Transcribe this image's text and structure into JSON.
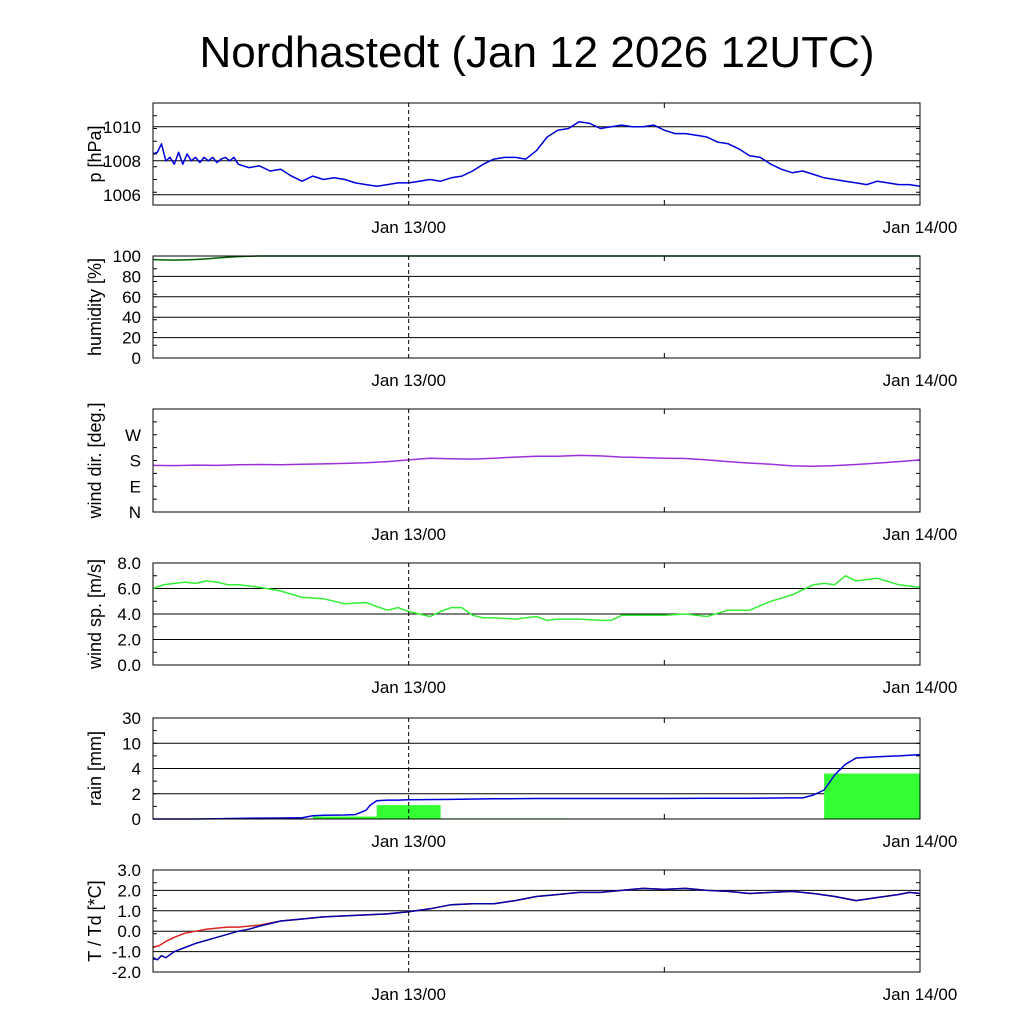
{
  "title": "Nordhastedt (Jan 12 2026 12UTC)",
  "colors": {
    "pressure": "#0000dd",
    "humidity": "#006400",
    "wind_dir": "#9b30d9",
    "wind_speed": "#33ee33",
    "rain_bar": "#33ff33",
    "rain_cum": "#0000dd",
    "temp": "#dd2222",
    "dewpoint": "#0000aa"
  },
  "chart_data": [
    {
      "id": "pressure",
      "type": "line",
      "ylabel": "p [hPa]",
      "x_ticks": [
        "Jan 13/00",
        "Jan 14/00"
      ],
      "x_tick_hours": [
        12,
        36
      ],
      "x_range_hours": [
        0,
        36
      ],
      "y_ticks": [
        "1006",
        "1008",
        "1010"
      ],
      "y_tick_values": [
        1006,
        1008,
        1010
      ],
      "ylim": [
        1005.4,
        1011.4
      ],
      "grid": "horizontal",
      "series": [
        {
          "key": "pressure",
          "x": [
            0,
            0.2,
            0.4,
            0.6,
            0.8,
            1.0,
            1.2,
            1.4,
            1.6,
            1.8,
            2.0,
            2.2,
            2.4,
            2.6,
            2.8,
            3.0,
            3.2,
            3.4,
            3.6,
            3.8,
            4.0,
            4.5,
            5.0,
            5.5,
            6.0,
            6.5,
            7.0,
            7.5,
            8.0,
            8.5,
            9.0,
            9.5,
            10.0,
            10.5,
            11.0,
            11.5,
            12.0,
            12.5,
            13.0,
            13.5,
            14.0,
            14.5,
            15.0,
            15.5,
            16.0,
            16.5,
            17.0,
            17.5,
            18.0,
            18.5,
            19.0,
            19.5,
            20.0,
            20.5,
            21.0,
            21.5,
            22.0,
            22.5,
            23.0,
            23.5,
            24.0,
            24.5,
            25.0,
            25.5,
            26.0,
            26.5,
            27.0,
            27.5,
            28.0,
            28.5,
            29.0,
            29.5,
            30.0,
            30.5,
            31.0,
            31.5,
            32.0,
            32.5,
            33.0,
            33.5,
            34.0,
            34.5,
            35.0,
            35.5,
            36.0
          ],
          "values": [
            1008.4,
            1008.5,
            1009.0,
            1008.0,
            1008.2,
            1007.8,
            1008.5,
            1007.8,
            1008.4,
            1008.0,
            1008.2,
            1007.9,
            1008.2,
            1008.0,
            1008.2,
            1007.9,
            1008.1,
            1008.2,
            1008.0,
            1008.2,
            1007.8,
            1007.6,
            1007.7,
            1007.4,
            1007.5,
            1007.1,
            1006.8,
            1007.1,
            1006.9,
            1007.0,
            1006.9,
            1006.7,
            1006.6,
            1006.5,
            1006.6,
            1006.7,
            1006.7,
            1006.8,
            1006.9,
            1006.8,
            1007.0,
            1007.1,
            1007.4,
            1007.8,
            1008.1,
            1008.2,
            1008.2,
            1008.1,
            1008.6,
            1009.4,
            1009.8,
            1009.9,
            1010.3,
            1010.2,
            1009.9,
            1010.0,
            1010.1,
            1010.0,
            1010.0,
            1010.1,
            1009.8,
            1009.6,
            1009.6,
            1009.5,
            1009.4,
            1009.1,
            1009.0,
            1008.7,
            1008.3,
            1008.2,
            1007.8,
            1007.5,
            1007.3,
            1007.4,
            1007.2,
            1007.0,
            1006.9,
            1006.8,
            1006.7,
            1006.6,
            1006.8,
            1006.7,
            1006.6,
            1006.6,
            1006.5
          ]
        }
      ]
    },
    {
      "id": "humidity",
      "type": "line",
      "ylabel": "humidity [%]",
      "x_ticks": [
        "Jan 13/00",
        "Jan 14/00"
      ],
      "x_tick_hours": [
        12,
        36
      ],
      "x_range_hours": [
        0,
        36
      ],
      "y_ticks": [
        "0",
        "20",
        "40",
        "60",
        "80",
        "100"
      ],
      "y_tick_values": [
        0,
        20,
        40,
        60,
        80,
        100
      ],
      "ylim": [
        0,
        100
      ],
      "grid": "horizontal",
      "series": [
        {
          "key": "humidity",
          "x": [
            0,
            0.5,
            1,
            1.5,
            2,
            2.5,
            3,
            3.5,
            4,
            4.5,
            5,
            36
          ],
          "values": [
            96.5,
            96.2,
            96.0,
            96.2,
            96.6,
            97.2,
            98.0,
            98.8,
            99.4,
            99.8,
            100,
            100
          ]
        }
      ]
    },
    {
      "id": "wind_dir",
      "type": "line",
      "ylabel": "wind dir. [deg.]",
      "x_ticks": [
        "Jan 13/00",
        "Jan 14/00"
      ],
      "x_tick_hours": [
        12,
        36
      ],
      "x_range_hours": [
        0,
        36
      ],
      "y_ticks": [
        "N",
        "E",
        "S",
        "W"
      ],
      "y_tick_values": [
        0,
        90,
        180,
        270
      ],
      "ylim": [
        0,
        360
      ],
      "grid": "none",
      "series": [
        {
          "key": "wind_dir",
          "x": [
            0,
            1,
            2,
            3,
            4,
            5,
            6,
            7,
            8,
            9,
            10,
            11,
            12,
            13,
            14,
            15,
            16,
            17,
            18,
            19,
            20,
            21,
            22,
            23,
            24,
            25,
            26,
            27,
            28,
            29,
            30,
            31,
            32,
            33,
            34,
            35,
            36
          ],
          "values": [
            163,
            162,
            164,
            163,
            165,
            166,
            165,
            167,
            168,
            170,
            172,
            176,
            182,
            188,
            186,
            185,
            188,
            192,
            195,
            195,
            198,
            196,
            192,
            190,
            188,
            187,
            182,
            176,
            171,
            167,
            161,
            160,
            162,
            166,
            171,
            176,
            182
          ]
        }
      ]
    },
    {
      "id": "wind_speed",
      "type": "line",
      "ylabel": "wind sp. [m/s]",
      "x_ticks": [
        "Jan 13/00",
        "Jan 14/00"
      ],
      "x_tick_hours": [
        12,
        36
      ],
      "x_range_hours": [
        0,
        36
      ],
      "y_ticks": [
        "0.0",
        "2.0",
        "4.0",
        "6.0",
        "8.0"
      ],
      "y_tick_values": [
        0,
        2,
        4,
        6,
        8
      ],
      "ylim": [
        0,
        8
      ],
      "grid": "horizontal",
      "series": [
        {
          "key": "wind_speed",
          "x": [
            0,
            0.5,
            1,
            1.5,
            2,
            2.5,
            3,
            3.5,
            4,
            5,
            6,
            7,
            8,
            9,
            10,
            10.5,
            11,
            11.5,
            12,
            12.5,
            13,
            13.5,
            14,
            14.5,
            15,
            15.5,
            16,
            17,
            18,
            18.5,
            19,
            20,
            21,
            21.5,
            22,
            23,
            24,
            25,
            26,
            27,
            28,
            29,
            30,
            31,
            31.5,
            32,
            32.5,
            33,
            33.5,
            34,
            35,
            36
          ],
          "values": [
            6.0,
            6.3,
            6.4,
            6.5,
            6.4,
            6.6,
            6.5,
            6.3,
            6.3,
            6.1,
            5.8,
            5.3,
            5.2,
            4.8,
            4.9,
            4.6,
            4.3,
            4.5,
            4.2,
            4.0,
            3.8,
            4.2,
            4.5,
            4.5,
            3.9,
            3.7,
            3.7,
            3.6,
            3.8,
            3.5,
            3.6,
            3.6,
            3.5,
            3.5,
            3.9,
            3.9,
            3.9,
            4.0,
            3.8,
            4.3,
            4.3,
            5.0,
            5.5,
            6.3,
            6.4,
            6.3,
            7.0,
            6.6,
            6.7,
            6.8,
            6.3,
            6.1
          ]
        }
      ]
    },
    {
      "id": "rain",
      "type": "bar",
      "ylabel": "rain [mm]",
      "x_ticks": [
        "Jan 13/00",
        "Jan 14/00"
      ],
      "x_tick_hours": [
        12,
        36
      ],
      "x_range_hours": [
        0,
        36
      ],
      "y_ticks": [
        "0",
        "2",
        "4",
        "10",
        "30"
      ],
      "y_tick_values": [
        0,
        2,
        4,
        10,
        30
      ],
      "y_tick_positions": [
        0,
        0.25,
        0.5,
        0.75,
        1.0
      ],
      "ylim": [
        0,
        30
      ],
      "grid": "horizontal",
      "bars": {
        "key": "rain_bar",
        "x_start": [
          7.5,
          10.5,
          13.5,
          31.5
        ],
        "x_end": [
          10.5,
          13.5,
          19.5,
          36
        ],
        "values": [
          0.2,
          1.1,
          0.05,
          3.6
        ]
      },
      "series": [
        {
          "key": "rain_cum",
          "x": [
            0,
            2,
            3,
            4,
            5,
            6,
            7,
            7.5,
            8,
            9,
            9.5,
            10,
            10.2,
            10.5,
            11,
            11.5,
            12,
            14,
            16,
            18,
            20,
            22,
            24,
            26,
            28,
            30,
            30.5,
            31,
            31.5,
            32,
            32.5,
            33,
            34,
            35,
            36
          ],
          "values": [
            0,
            0,
            0.02,
            0.05,
            0.07,
            0.08,
            0.1,
            0.25,
            0.3,
            0.32,
            0.35,
            0.7,
            1.1,
            1.45,
            1.5,
            1.5,
            1.52,
            1.55,
            1.6,
            1.62,
            1.62,
            1.62,
            1.62,
            1.64,
            1.65,
            1.67,
            1.67,
            1.9,
            2.3,
            3.5,
            5.0,
            6.5,
            6.8,
            7.0,
            7.3
          ]
        }
      ]
    },
    {
      "id": "temp",
      "type": "line",
      "ylabel": "T / Td [*C]",
      "x_ticks": [
        "Jan 13/00",
        "Jan 14/00"
      ],
      "x_tick_hours": [
        12,
        36
      ],
      "x_range_hours": [
        0,
        36
      ],
      "y_ticks": [
        "-2.0",
        "-1.0",
        "0.0",
        "1.0",
        "2.0",
        "3.0"
      ],
      "y_tick_values": [
        -2,
        -1,
        0,
        1,
        2,
        3
      ],
      "ylim": [
        -2,
        3
      ],
      "grid": "horizontal",
      "series": [
        {
          "key": "temp",
          "x": [
            0,
            0.3,
            0.6,
            1,
            1.5,
            2,
            2.5,
            3,
            3.5,
            4,
            4.5,
            5,
            6,
            7,
            8,
            9,
            10,
            11,
            12,
            13,
            14,
            15,
            16,
            17,
            18,
            19,
            20,
            21,
            22,
            23,
            24,
            25,
            26,
            27,
            28,
            29,
            30,
            31,
            32,
            33,
            34,
            35,
            35.5,
            36
          ],
          "values": [
            -0.8,
            -0.7,
            -0.5,
            -0.3,
            -0.1,
            0.0,
            0.1,
            0.15,
            0.2,
            0.2,
            0.25,
            0.3,
            0.5,
            0.6,
            0.7,
            0.75,
            0.8,
            0.85,
            0.95,
            1.1,
            1.3,
            1.35,
            1.35,
            1.5,
            1.7,
            1.8,
            1.9,
            1.9,
            2.0,
            2.1,
            2.05,
            2.1,
            2.0,
            1.95,
            1.85,
            1.9,
            1.95,
            1.85,
            1.7,
            1.5,
            1.65,
            1.8,
            1.9,
            1.85
          ]
        },
        {
          "key": "dewpoint",
          "x": [
            0,
            0.2,
            0.4,
            0.6,
            1,
            1.5,
            2,
            2.5,
            3,
            3.5,
            4,
            4.5,
            5,
            6,
            7,
            8,
            9,
            10,
            11,
            12,
            13,
            14,
            15,
            16,
            17,
            18,
            19,
            20,
            21,
            22,
            23,
            24,
            25,
            26,
            27,
            28,
            29,
            30,
            31,
            32,
            33,
            34,
            35,
            35.5,
            36
          ],
          "values": [
            -1.3,
            -1.4,
            -1.2,
            -1.3,
            -1.0,
            -0.8,
            -0.6,
            -0.45,
            -0.3,
            -0.15,
            0.0,
            0.1,
            0.25,
            0.5,
            0.6,
            0.7,
            0.75,
            0.8,
            0.85,
            0.95,
            1.1,
            1.3,
            1.35,
            1.35,
            1.5,
            1.7,
            1.8,
            1.9,
            1.9,
            2.0,
            2.1,
            2.05,
            2.1,
            2.0,
            1.95,
            1.85,
            1.9,
            1.95,
            1.85,
            1.7,
            1.5,
            1.65,
            1.8,
            1.9,
            1.85
          ]
        }
      ]
    }
  ]
}
